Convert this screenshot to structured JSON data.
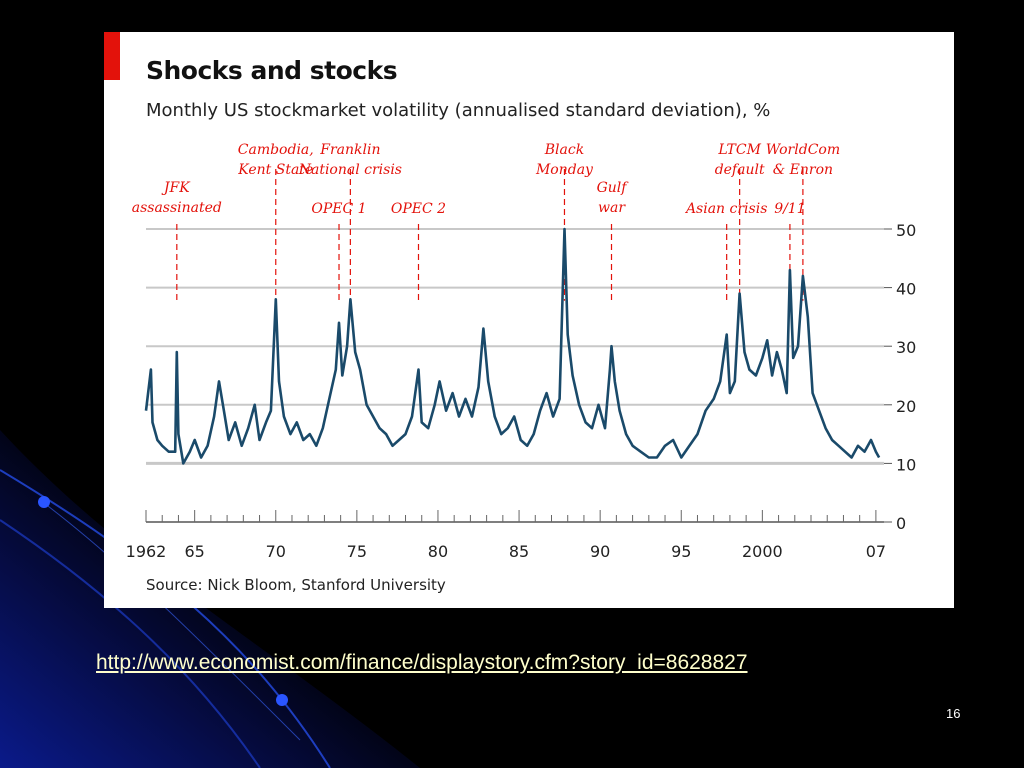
{
  "slide": {
    "link_text": "http://www.economist.com/finance/displaystory.cfm?story_id=8628827",
    "slide_number": "16",
    "background_color": "#000000",
    "accent_colors": [
      "#0a1a8a",
      "#1c3cc8",
      "#2a55ff"
    ]
  },
  "chart_data": {
    "type": "line",
    "title": "Shocks and stocks",
    "subtitle": "Monthly US stockmarket volatility (annualised standard deviation), %",
    "source": "Source: Nick Bloom, Stanford University",
    "xlabel": "",
    "ylabel": "",
    "xlim": [
      1962.0,
      2007.5
    ],
    "ylim": [
      0,
      50
    ],
    "y_axis_side": "right",
    "grid": true,
    "line_color": "#1a4a6a",
    "annotation_color": "#e3120b",
    "x_tick_labels": [
      {
        "x": 1962,
        "label": "1962"
      },
      {
        "x": 1965,
        "label": "65"
      },
      {
        "x": 1970,
        "label": "70"
      },
      {
        "x": 1975,
        "label": "75"
      },
      {
        "x": 1980,
        "label": "80"
      },
      {
        "x": 1985,
        "label": "85"
      },
      {
        "x": 1990,
        "label": "90"
      },
      {
        "x": 1995,
        "label": "95"
      },
      {
        "x": 2000,
        "label": "2000"
      },
      {
        "x": 2007,
        "label": "07"
      }
    ],
    "y_ticks": [
      0,
      10,
      20,
      30,
      40,
      50
    ],
    "annotations": [
      {
        "x": 1963.9,
        "lines": [
          "JFK",
          "assassinated"
        ],
        "tier": 3
      },
      {
        "x": 1970.0,
        "lines": [
          "Cambodia,",
          "Kent State"
        ],
        "tier": 1
      },
      {
        "x": 1973.9,
        "lines": [
          "OPEC 1"
        ],
        "tier": 2
      },
      {
        "x": 1974.6,
        "lines": [
          "Franklin",
          "National crisis"
        ],
        "tier": 1
      },
      {
        "x": 1978.8,
        "lines": [
          "OPEC 2"
        ],
        "tier": 2
      },
      {
        "x": 1987.8,
        "lines": [
          "Black",
          "Monday"
        ],
        "tier": 1
      },
      {
        "x": 1990.7,
        "lines": [
          "Gulf",
          "war"
        ],
        "tier": 2
      },
      {
        "x": 1997.8,
        "lines": [
          "Asian crisis"
        ],
        "tier": 3
      },
      {
        "x": 1998.6,
        "lines": [
          "LTCM",
          "default"
        ],
        "tier": 1
      },
      {
        "x": 2001.7,
        "lines": [
          "9/11"
        ],
        "tier": 3
      },
      {
        "x": 2002.5,
        "lines": [
          "WorldCom",
          "& Enron"
        ],
        "tier": 1
      }
    ],
    "series": [
      {
        "values": [
          [
            1962.0,
            19
          ],
          [
            1962.3,
            26
          ],
          [
            1962.4,
            17
          ],
          [
            1962.7,
            14
          ],
          [
            1963.0,
            13
          ],
          [
            1963.4,
            12
          ],
          [
            1963.8,
            12
          ],
          [
            1963.9,
            29
          ],
          [
            1964.0,
            15
          ],
          [
            1964.3,
            10
          ],
          [
            1964.7,
            12
          ],
          [
            1965.0,
            14
          ],
          [
            1965.4,
            11
          ],
          [
            1965.8,
            13
          ],
          [
            1966.2,
            18
          ],
          [
            1966.5,
            24
          ],
          [
            1966.8,
            19
          ],
          [
            1967.1,
            14
          ],
          [
            1967.5,
            17
          ],
          [
            1967.9,
            13
          ],
          [
            1968.3,
            16
          ],
          [
            1968.7,
            20
          ],
          [
            1969.0,
            14
          ],
          [
            1969.4,
            17
          ],
          [
            1969.7,
            19
          ],
          [
            1970.0,
            38
          ],
          [
            1970.2,
            24
          ],
          [
            1970.5,
            18
          ],
          [
            1970.9,
            15
          ],
          [
            1971.3,
            17
          ],
          [
            1971.7,
            14
          ],
          [
            1972.1,
            15
          ],
          [
            1972.5,
            13
          ],
          [
            1972.9,
            16
          ],
          [
            1973.3,
            21
          ],
          [
            1973.7,
            26
          ],
          [
            1973.9,
            34
          ],
          [
            1974.1,
            25
          ],
          [
            1974.4,
            30
          ],
          [
            1974.6,
            38
          ],
          [
            1974.9,
            29
          ],
          [
            1975.2,
            26
          ],
          [
            1975.6,
            20
          ],
          [
            1976.0,
            18
          ],
          [
            1976.4,
            16
          ],
          [
            1976.8,
            15
          ],
          [
            1977.2,
            13
          ],
          [
            1977.6,
            14
          ],
          [
            1978.0,
            15
          ],
          [
            1978.4,
            18
          ],
          [
            1978.8,
            26
          ],
          [
            1979.0,
            17
          ],
          [
            1979.4,
            16
          ],
          [
            1979.8,
            20
          ],
          [
            1980.1,
            24
          ],
          [
            1980.5,
            19
          ],
          [
            1980.9,
            22
          ],
          [
            1981.3,
            18
          ],
          [
            1981.7,
            21
          ],
          [
            1982.1,
            18
          ],
          [
            1982.5,
            23
          ],
          [
            1982.8,
            33
          ],
          [
            1983.1,
            24
          ],
          [
            1983.5,
            18
          ],
          [
            1983.9,
            15
          ],
          [
            1984.3,
            16
          ],
          [
            1984.7,
            18
          ],
          [
            1985.1,
            14
          ],
          [
            1985.5,
            13
          ],
          [
            1985.9,
            15
          ],
          [
            1986.3,
            19
          ],
          [
            1986.7,
            22
          ],
          [
            1987.1,
            18
          ],
          [
            1987.5,
            21
          ],
          [
            1987.8,
            50
          ],
          [
            1988.0,
            32
          ],
          [
            1988.3,
            25
          ],
          [
            1988.7,
            20
          ],
          [
            1989.1,
            17
          ],
          [
            1989.5,
            16
          ],
          [
            1989.9,
            20
          ],
          [
            1990.3,
            16
          ],
          [
            1990.6,
            26
          ],
          [
            1990.7,
            30
          ],
          [
            1990.9,
            24
          ],
          [
            1991.2,
            19
          ],
          [
            1991.6,
            15
          ],
          [
            1992.0,
            13
          ],
          [
            1992.5,
            12
          ],
          [
            1993.0,
            11
          ],
          [
            1993.5,
            11
          ],
          [
            1994.0,
            13
          ],
          [
            1994.5,
            14
          ],
          [
            1995.0,
            11
          ],
          [
            1995.5,
            13
          ],
          [
            1996.0,
            15
          ],
          [
            1996.5,
            19
          ],
          [
            1997.0,
            21
          ],
          [
            1997.4,
            24
          ],
          [
            1997.8,
            32
          ],
          [
            1998.0,
            22
          ],
          [
            1998.3,
            24
          ],
          [
            1998.6,
            39
          ],
          [
            1998.9,
            29
          ],
          [
            1999.2,
            26
          ],
          [
            1999.6,
            25
          ],
          [
            2000.0,
            28
          ],
          [
            2000.3,
            31
          ],
          [
            2000.6,
            25
          ],
          [
            2000.9,
            29
          ],
          [
            2001.2,
            26
          ],
          [
            2001.5,
            22
          ],
          [
            2001.7,
            43
          ],
          [
            2001.9,
            28
          ],
          [
            2002.2,
            30
          ],
          [
            2002.5,
            42
          ],
          [
            2002.8,
            35
          ],
          [
            2003.1,
            22
          ],
          [
            2003.5,
            19
          ],
          [
            2003.9,
            16
          ],
          [
            2004.3,
            14
          ],
          [
            2004.7,
            13
          ],
          [
            2005.1,
            12
          ],
          [
            2005.5,
            11
          ],
          [
            2005.9,
            13
          ],
          [
            2006.3,
            12
          ],
          [
            2006.7,
            14
          ],
          [
            2007.0,
            12
          ],
          [
            2007.2,
            11
          ]
        ]
      }
    ]
  }
}
